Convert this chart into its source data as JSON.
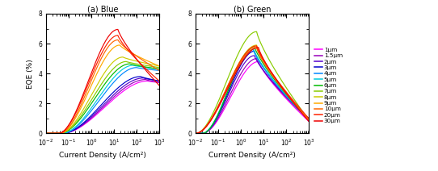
{
  "legend_labels": [
    "1μm",
    "1.5μm",
    "2μm",
    "3μm",
    "4μm",
    "5μm",
    "6μm",
    "7μm",
    "8μm",
    "9μm",
    "10μm",
    "20μm",
    "30μm"
  ],
  "colors": [
    "#ff00ff",
    "#9900bb",
    "#5500cc",
    "#0000cc",
    "#0088ff",
    "#00ccdd",
    "#00bb00",
    "#88cc00",
    "#cccc00",
    "#ffaa00",
    "#ff6600",
    "#ff2200",
    "#ee0000"
  ],
  "xlim": [
    0.01,
    1000
  ],
  "ylim": [
    0,
    8
  ],
  "title_blue": "(a) Blue",
  "title_green": "(b) Green",
  "xlabel": "Current Density (A/cm²)",
  "ylabel": "EQE (%)",
  "blue_curves": {
    "peak_eqe": [
      3.5,
      3.6,
      3.7,
      3.8,
      4.4,
      4.55,
      4.65,
      4.8,
      5.1,
      5.9,
      6.25,
      6.55,
      6.95
    ],
    "peak_j": [
      300,
      250,
      200,
      150,
      100,
      70,
      50,
      35,
      25,
      18,
      15,
      15,
      15
    ],
    "onset_j": [
      0.05,
      0.05,
      0.05,
      0.05,
      0.05,
      0.05,
      0.04,
      0.04,
      0.04,
      0.04,
      0.04,
      0.035,
      0.035
    ],
    "droop_end": [
      3.4,
      3.4,
      3.5,
      3.5,
      4.2,
      4.3,
      4.3,
      4.4,
      4.5,
      4.5,
      4.2,
      3.5,
      3.2
    ]
  },
  "green_curves": {
    "peak_eqe": [
      4.8,
      5.0,
      5.2,
      5.5,
      5.6,
      5.7,
      5.8,
      6.8,
      5.9,
      5.8,
      5.7,
      5.85,
      5.75
    ],
    "peak_j": [
      6,
      5,
      4,
      4,
      3.5,
      3.5,
      4,
      5,
      5,
      5,
      5,
      5,
      6
    ],
    "onset_j": [
      0.02,
      0.02,
      0.02,
      0.02,
      0.02,
      0.02,
      0.02,
      0.01,
      0.01,
      0.01,
      0.01,
      0.01,
      0.01
    ],
    "droop_end": [
      0.8,
      0.9,
      1.0,
      0.9,
      0.9,
      0.9,
      0.9,
      0.9,
      0.9,
      0.9,
      0.9,
      1.0,
      0.8
    ]
  }
}
